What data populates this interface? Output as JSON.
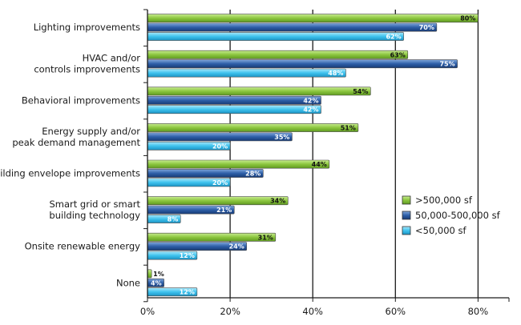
{
  "chart_data": {
    "type": "bar",
    "orientation": "horizontal",
    "categories": [
      [
        "Lighting improvements"
      ],
      [
        "HVAC and/or",
        "controls improvements"
      ],
      [
        "Behavioral improvements"
      ],
      [
        "Energy supply and/or",
        "peak demand management"
      ],
      [
        "Building envelope improvements"
      ],
      [
        "Smart grid or smart",
        "building technology"
      ],
      [
        "Onsite renewable energy"
      ],
      [
        "None"
      ]
    ],
    "series": [
      {
        "name": ">500,000 sf",
        "color": "#8cc63f",
        "values": [
          80,
          63,
          54,
          51,
          44,
          34,
          31,
          1
        ]
      },
      {
        "name": "50,000-500,000 sf",
        "color": "#2e5fa8",
        "values": [
          70,
          75,
          42,
          35,
          28,
          21,
          24,
          4
        ]
      },
      {
        "name": "<50,000 sf",
        "color": "#3fc3ee",
        "values": [
          62,
          48,
          42,
          20,
          20,
          8,
          12,
          12
        ]
      }
    ],
    "value_labels": [
      [
        "80%",
        "63%",
        "54%",
        "51%",
        "44%",
        "34%",
        "31%",
        "1%"
      ],
      [
        "70%",
        "75%",
        "42%",
        "35%",
        "28%",
        "21%",
        "24%",
        "4%"
      ],
      [
        "62%",
        "48%",
        "42%",
        "20%",
        "20%",
        "8%",
        "12%",
        "12%"
      ]
    ],
    "xlim": [
      0,
      87
    ],
    "xticks": [
      0,
      20,
      40,
      60,
      80
    ],
    "xtick_labels": [
      "0%",
      "20%",
      "40%",
      "60%",
      "80%"
    ],
    "grid": "vertical",
    "legend": "right-middle"
  }
}
